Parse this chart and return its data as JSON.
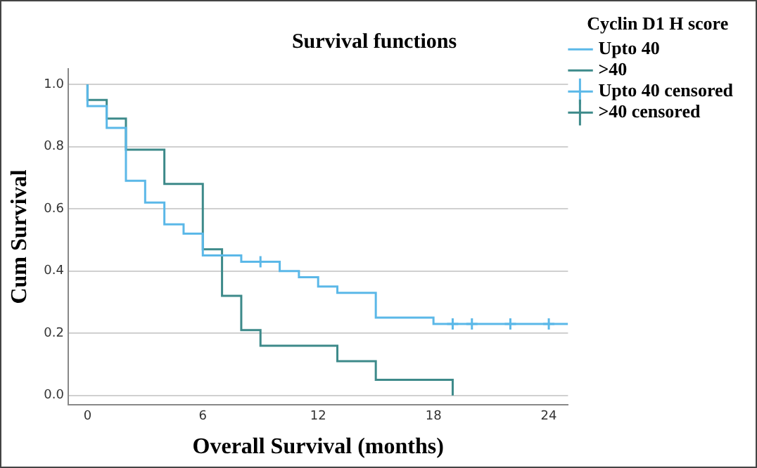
{
  "chart_data": {
    "type": "step",
    "title": "Survival functions",
    "xlabel": "Overall Survival (months)",
    "ylabel": "Cum Survival",
    "legend_title": "Cyclin D1 H score",
    "legend": "top right",
    "grid": "y",
    "xlim": [
      -1,
      25
    ],
    "xticks": [
      0,
      6,
      12,
      18,
      24
    ],
    "ylim": [
      -0.03,
      1.05
    ],
    "yticks": [
      {
        "value": 0,
        "label": "0.0"
      },
      {
        "value": 0.2,
        "label": "0.2"
      },
      {
        "value": 0.4,
        "label": "0.4"
      },
      {
        "value": 0.6,
        "label": "0.6"
      },
      {
        "value": 0.8,
        "label": "0.8"
      },
      {
        "value": 1,
        "label": "1.0"
      }
    ],
    "series": [
      {
        "name": "Upto 40",
        "type": "step",
        "color": "#5bb8e8",
        "x": [
          0,
          0,
          1,
          2,
          3,
          4,
          5,
          6,
          8,
          10,
          11,
          12,
          13,
          15,
          18,
          25
        ],
        "values": [
          1,
          0.93,
          0.86,
          0.69,
          0.62,
          0.55,
          0.52,
          0.45,
          0.43,
          0.4,
          0.38,
          0.35,
          0.33,
          0.25,
          0.23,
          0.23
        ]
      },
      {
        "name": ">40",
        "type": "step",
        "color": "#3d8a8a",
        "x": [
          0,
          0,
          1,
          2,
          4,
          6,
          7,
          8,
          9,
          13,
          15,
          19
        ],
        "values": [
          1,
          0.95,
          0.89,
          0.79,
          0.68,
          0.47,
          0.32,
          0.21,
          0.16,
          0.11,
          0.05,
          0
        ]
      },
      {
        "name": "Upto 40 censored",
        "type": "scatter",
        "marker": "cross",
        "color": "#5bb8e8",
        "x": [
          9,
          19,
          20,
          22,
          24
        ],
        "values": [
          0.43,
          0.23,
          0.23,
          0.23,
          0.23
        ]
      },
      {
        "name": ">40 censored",
        "type": "scatter",
        "marker": "cross",
        "color": "#3d8a8a"
      }
    ]
  }
}
